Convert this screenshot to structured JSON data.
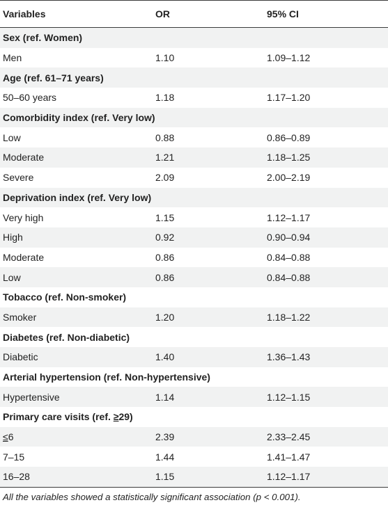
{
  "table": {
    "headers": {
      "variables": "Variables",
      "or": "OR",
      "ci": "95% CI"
    },
    "rows": [
      {
        "type": "group",
        "label": "Sex (ref. Women)"
      },
      {
        "type": "data",
        "label": "Men",
        "or": "1.10",
        "ci": "1.09–1.12"
      },
      {
        "type": "group",
        "label": "Age (ref. 61–71 years)"
      },
      {
        "type": "data",
        "label": "50–60 years",
        "or": "1.18",
        "ci": "1.17–1.20"
      },
      {
        "type": "group",
        "label": "Comorbidity index (ref. Very low)"
      },
      {
        "type": "data",
        "label": "Low",
        "or": "0.88",
        "ci": "0.86–0.89"
      },
      {
        "type": "data",
        "label": "Moderate",
        "or": "1.21",
        "ci": "1.18–1.25"
      },
      {
        "type": "data",
        "label": "Severe",
        "or": "2.09",
        "ci": "2.00–2.19"
      },
      {
        "type": "group",
        "label": "Deprivation index (ref. Very low)"
      },
      {
        "type": "data",
        "label": "Very high",
        "or": "1.15",
        "ci": "1.12–1.17"
      },
      {
        "type": "data",
        "label": "High",
        "or": "0.92",
        "ci": "0.90–0.94"
      },
      {
        "type": "data",
        "label": "Moderate",
        "or": "0.86",
        "ci": "0.84–0.88"
      },
      {
        "type": "data",
        "label": "Low",
        "or": "0.86",
        "ci": "0.84–0.88"
      },
      {
        "type": "group",
        "label": "Tobacco (ref. Non-smoker)"
      },
      {
        "type": "data",
        "label": "Smoker",
        "or": "1.20",
        "ci": "1.18–1.22"
      },
      {
        "type": "group",
        "label": "Diabetes (ref. Non-diabetic)"
      },
      {
        "type": "data",
        "label": "Diabetic",
        "or": "1.40",
        "ci": "1.36–1.43"
      },
      {
        "type": "group",
        "label": "Arterial hypertension (ref. Non-hypertensive)"
      },
      {
        "type": "data",
        "label": "Hypertensive",
        "or": "1.14",
        "ci": "1.12–1.15"
      },
      {
        "type": "group",
        "label_prefix": "Primary care visits (ref. ",
        "label_ul": "≥",
        "label_suffix": "29)"
      },
      {
        "type": "data",
        "label_ul": "≤",
        "label_suffix": "6",
        "or": "2.39",
        "ci": "2.33–2.45"
      },
      {
        "type": "data",
        "label": "7–15",
        "or": "1.44",
        "ci": "1.41–1.47"
      },
      {
        "type": "data",
        "label": "16–28",
        "or": "1.15",
        "ci": "1.12–1.17"
      }
    ]
  },
  "footnote": {
    "prefix": "All the variables showed a statistically significant association (",
    "p": "p",
    "suffix": " < 0.001)."
  }
}
